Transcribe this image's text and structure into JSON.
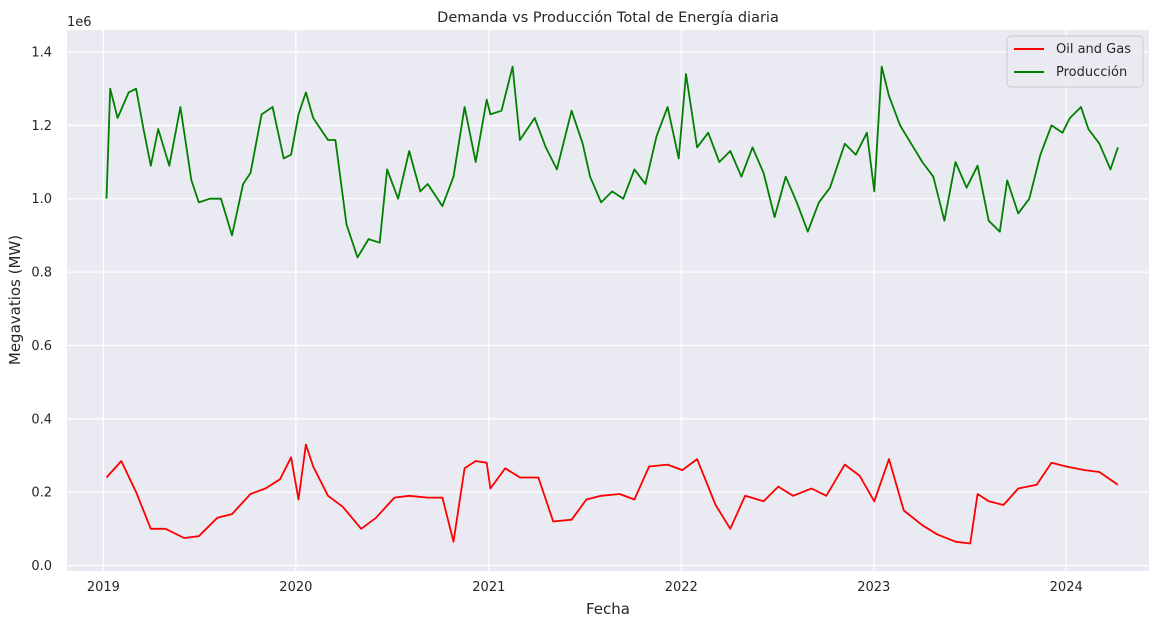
{
  "chart_data": {
    "type": "line",
    "title": "Demanda vs Producción Total de Energía diaria",
    "xlabel": "Fecha",
    "ylabel": "Megavatios (MW)",
    "y_offset_label": "1e6",
    "xlim": [
      "2018-10-24",
      "2024-06-06"
    ],
    "ylim": [
      -15000,
      1460000
    ],
    "x_ticks": [
      "2019",
      "2020",
      "2021",
      "2022",
      "2023",
      "2024"
    ],
    "x_tick_dates": [
      "2019-01-01",
      "2020-01-01",
      "2021-01-01",
      "2022-01-01",
      "2023-01-01",
      "2024-01-01"
    ],
    "y_ticks": [
      0.0,
      0.2,
      0.4,
      0.6,
      0.8,
      1.0,
      1.2,
      1.4
    ],
    "y_tick_labels": [
      "0.0",
      "0.2",
      "0.4",
      "0.6",
      "0.8",
      "1.0",
      "1.2",
      "1.4"
    ],
    "grid": true,
    "legend_position": "top-right",
    "colors": {
      "background": "#eaeaf2",
      "grid": "#ffffff",
      "text": "#262626"
    },
    "series": [
      {
        "name": "Oil and Gas",
        "color": "#ff0000",
        "x": [
          "2019-01-07",
          "2019-02-04",
          "2019-03-04",
          "2019-04-01",
          "2019-04-29",
          "2019-06-03",
          "2019-07-01",
          "2019-08-05",
          "2019-09-02",
          "2019-10-07",
          "2019-11-04",
          "2019-12-02",
          "2019-12-23",
          "2020-01-06",
          "2020-01-20",
          "2020-02-03",
          "2020-03-02",
          "2020-03-30",
          "2020-05-04",
          "2020-06-01",
          "2020-07-06",
          "2020-08-03",
          "2020-09-07",
          "2020-10-05",
          "2020-10-26",
          "2020-11-16",
          "2020-12-07",
          "2020-12-28",
          "2021-01-04",
          "2021-02-01",
          "2021-03-01",
          "2021-04-05",
          "2021-05-03",
          "2021-06-07",
          "2021-07-05",
          "2021-08-02",
          "2021-09-06",
          "2021-10-04",
          "2021-11-01",
          "2021-12-06",
          "2022-01-03",
          "2022-01-31",
          "2022-03-07",
          "2022-04-04",
          "2022-05-02",
          "2022-06-06",
          "2022-07-04",
          "2022-08-01",
          "2022-09-05",
          "2022-10-03",
          "2022-11-07",
          "2022-12-05",
          "2023-01-02",
          "2023-01-30",
          "2023-02-27",
          "2023-04-03",
          "2023-05-01",
          "2023-06-05",
          "2023-07-03",
          "2023-07-17",
          "2023-08-07",
          "2023-09-04",
          "2023-10-02",
          "2023-11-06",
          "2023-12-04",
          "2024-01-01",
          "2024-02-05",
          "2024-03-04",
          "2024-04-08"
        ],
        "values": [
          240000,
          285000,
          200000,
          100000,
          100000,
          75000,
          80000,
          130000,
          140000,
          195000,
          210000,
          235000,
          295000,
          180000,
          330000,
          270000,
          190000,
          160000,
          100000,
          130000,
          185000,
          190000,
          185000,
          185000,
          65000,
          265000,
          285000,
          280000,
          210000,
          265000,
          240000,
          240000,
          120000,
          125000,
          180000,
          190000,
          195000,
          180000,
          270000,
          275000,
          260000,
          290000,
          165000,
          100000,
          190000,
          175000,
          215000,
          190000,
          210000,
          190000,
          275000,
          245000,
          175000,
          290000,
          150000,
          110000,
          85000,
          65000,
          60000,
          195000,
          175000,
          165000,
          210000,
          220000,
          280000,
          270000,
          260000,
          255000,
          220000
        ]
      },
      {
        "name": "Producción",
        "color": "#008000",
        "x": [
          "2019-01-07",
          "2019-01-14",
          "2019-01-28",
          "2019-02-18",
          "2019-03-04",
          "2019-03-18",
          "2019-04-01",
          "2019-04-15",
          "2019-05-06",
          "2019-05-27",
          "2019-06-17",
          "2019-07-01",
          "2019-07-22",
          "2019-08-12",
          "2019-09-02",
          "2019-09-23",
          "2019-10-07",
          "2019-10-28",
          "2019-11-18",
          "2019-12-09",
          "2019-12-23",
          "2020-01-06",
          "2020-01-20",
          "2020-02-03",
          "2020-03-02",
          "2020-03-16",
          "2020-04-06",
          "2020-04-27",
          "2020-05-18",
          "2020-06-08",
          "2020-06-22",
          "2020-07-13",
          "2020-08-03",
          "2020-08-24",
          "2020-09-07",
          "2020-10-05",
          "2020-10-26",
          "2020-11-16",
          "2020-12-07",
          "2020-12-28",
          "2021-01-04",
          "2021-01-25",
          "2021-02-15",
          "2021-03-01",
          "2021-03-29",
          "2021-04-19",
          "2021-05-10",
          "2021-06-07",
          "2021-06-28",
          "2021-07-12",
          "2021-08-02",
          "2021-08-23",
          "2021-09-13",
          "2021-10-04",
          "2021-10-25",
          "2021-11-15",
          "2021-12-06",
          "2021-12-27",
          "2022-01-10",
          "2022-01-31",
          "2022-02-21",
          "2022-03-14",
          "2022-04-04",
          "2022-04-25",
          "2022-05-16",
          "2022-06-06",
          "2022-06-27",
          "2022-07-18",
          "2022-08-08",
          "2022-08-29",
          "2022-09-19",
          "2022-10-10",
          "2022-11-07",
          "2022-11-28",
          "2022-12-19",
          "2023-01-02",
          "2023-01-16",
          "2023-01-30",
          "2023-02-20",
          "2023-03-13",
          "2023-04-03",
          "2023-04-24",
          "2023-05-15",
          "2023-06-05",
          "2023-06-26",
          "2023-07-17",
          "2023-08-07",
          "2023-08-28",
          "2023-09-11",
          "2023-10-02",
          "2023-10-23",
          "2023-11-13",
          "2023-12-04",
          "2023-12-25",
          "2024-01-08",
          "2024-01-29",
          "2024-02-12",
          "2024-03-04",
          "2024-03-25",
          "2024-04-08"
        ],
        "values": [
          1000000,
          1300000,
          1220000,
          1290000,
          1300000,
          1190000,
          1090000,
          1190000,
          1090000,
          1250000,
          1050000,
          990000,
          1000000,
          1000000,
          900000,
          1040000,
          1070000,
          1230000,
          1250000,
          1110000,
          1120000,
          1230000,
          1290000,
          1220000,
          1160000,
          1160000,
          930000,
          840000,
          890000,
          880000,
          1080000,
          1000000,
          1130000,
          1020000,
          1040000,
          980000,
          1060000,
          1250000,
          1100000,
          1270000,
          1230000,
          1240000,
          1360000,
          1160000,
          1220000,
          1140000,
          1080000,
          1240000,
          1150000,
          1060000,
          990000,
          1020000,
          1000000,
          1080000,
          1040000,
          1170000,
          1250000,
          1110000,
          1340000,
          1140000,
          1180000,
          1100000,
          1130000,
          1060000,
          1140000,
          1070000,
          950000,
          1060000,
          990000,
          910000,
          990000,
          1030000,
          1150000,
          1120000,
          1180000,
          1020000,
          1360000,
          1280000,
          1200000,
          1150000,
          1100000,
          1060000,
          940000,
          1100000,
          1030000,
          1090000,
          940000,
          910000,
          1050000,
          960000,
          1000000,
          1120000,
          1200000,
          1180000,
          1220000,
          1250000,
          1190000,
          1150000,
          1080000,
          1140000
        ]
      }
    ]
  }
}
